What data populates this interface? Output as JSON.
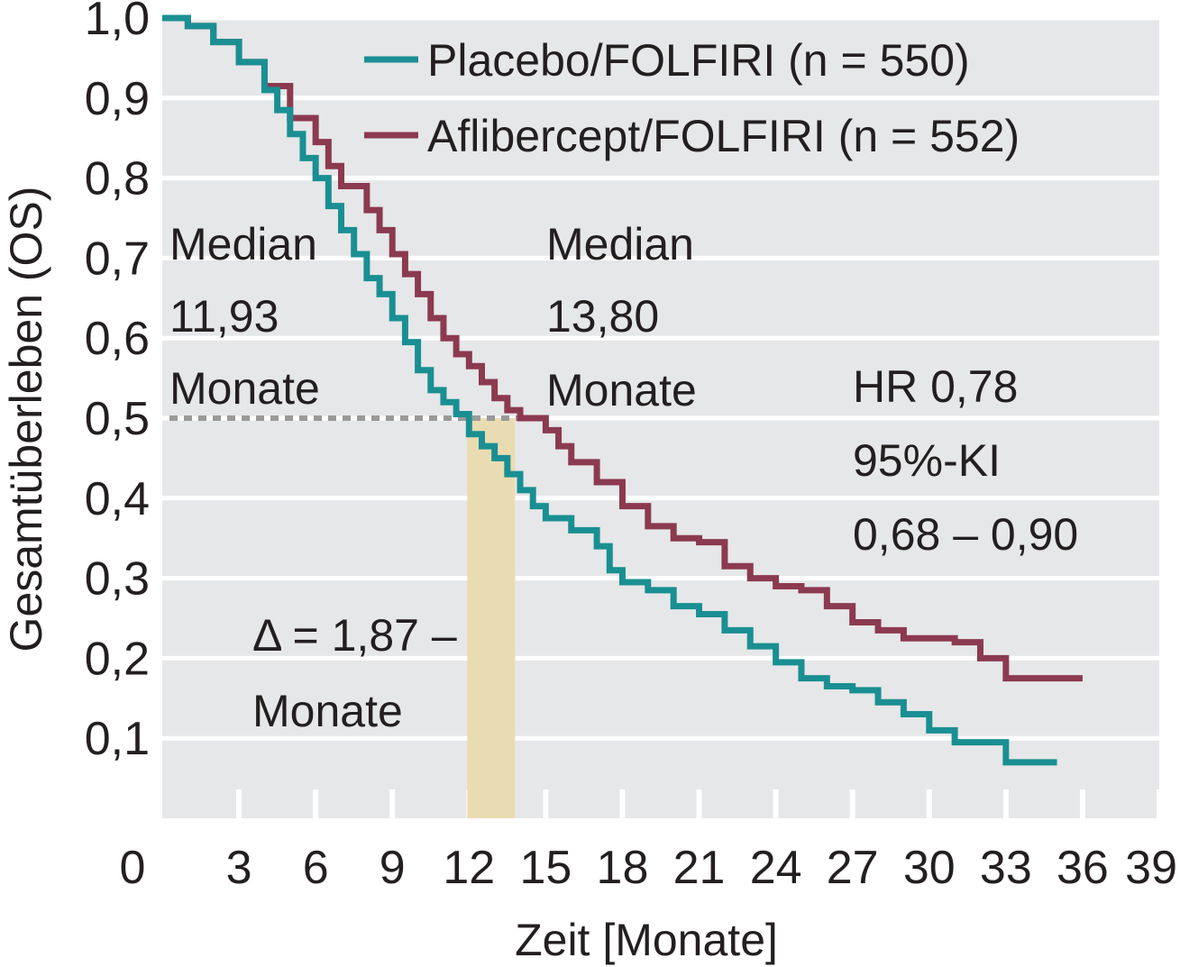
{
  "chart_data": {
    "type": "line",
    "subtype": "kaplan-meier step curve",
    "xlabel": "Zeit [Monate]",
    "ylabel": "Gesamtüberleben (OS)",
    "xlim": [
      0,
      39
    ],
    "ylim": [
      0,
      1.0
    ],
    "x_ticks": [
      "0",
      "3",
      "6",
      "9",
      "12",
      "15",
      "18",
      "21",
      "24",
      "27",
      "30",
      "33",
      "36",
      "39"
    ],
    "y_ticks": [
      "0,1",
      "0,2",
      "0,3",
      "0,4",
      "0,5",
      "0,6",
      "0,7",
      "0,8",
      "0,9",
      "1,0"
    ],
    "grid": "horizontal",
    "background_color": "#e6e7e8",
    "legend_position": "top-right",
    "series": [
      {
        "name": "Placebo/FOLFIRI (n = 550)",
        "color": "#1a8f93",
        "points": [
          [
            0,
            1.0
          ],
          [
            1,
            0.99
          ],
          [
            2,
            0.97
          ],
          [
            3,
            0.945
          ],
          [
            4,
            0.91
          ],
          [
            4.5,
            0.885
          ],
          [
            5,
            0.855
          ],
          [
            5.5,
            0.825
          ],
          [
            6,
            0.8
          ],
          [
            6.5,
            0.765
          ],
          [
            7,
            0.735
          ],
          [
            7.5,
            0.705
          ],
          [
            8,
            0.675
          ],
          [
            8.5,
            0.655
          ],
          [
            9,
            0.625
          ],
          [
            9.5,
            0.595
          ],
          [
            10,
            0.56
          ],
          [
            10.5,
            0.535
          ],
          [
            11,
            0.52
          ],
          [
            11.5,
            0.505
          ],
          [
            12,
            0.48
          ],
          [
            12.5,
            0.465
          ],
          [
            13,
            0.45
          ],
          [
            13.5,
            0.43
          ],
          [
            14,
            0.41
          ],
          [
            14.5,
            0.39
          ],
          [
            15,
            0.375
          ],
          [
            16,
            0.36
          ],
          [
            17,
            0.34
          ],
          [
            17.5,
            0.31
          ],
          [
            18,
            0.295
          ],
          [
            19,
            0.285
          ],
          [
            20,
            0.265
          ],
          [
            21,
            0.255
          ],
          [
            22,
            0.235
          ],
          [
            23,
            0.215
          ],
          [
            24,
            0.195
          ],
          [
            25,
            0.175
          ],
          [
            26,
            0.165
          ],
          [
            27,
            0.16
          ],
          [
            28,
            0.145
          ],
          [
            29,
            0.13
          ],
          [
            30,
            0.11
          ],
          [
            31,
            0.095
          ],
          [
            32,
            0.095
          ],
          [
            33,
            0.07
          ],
          [
            35,
            0.07
          ]
        ]
      },
      {
        "name": "Aflibercept/FOLFIRI (n = 552)",
        "color": "#8b3a4f",
        "points": [
          [
            0,
            1.0
          ],
          [
            1,
            0.99
          ],
          [
            2,
            0.97
          ],
          [
            3,
            0.945
          ],
          [
            4,
            0.915
          ],
          [
            5,
            0.875
          ],
          [
            6,
            0.845
          ],
          [
            6.5,
            0.815
          ],
          [
            7,
            0.79
          ],
          [
            8,
            0.76
          ],
          [
            8.5,
            0.735
          ],
          [
            9,
            0.705
          ],
          [
            9.5,
            0.68
          ],
          [
            10,
            0.655
          ],
          [
            10.5,
            0.625
          ],
          [
            11,
            0.6
          ],
          [
            11.5,
            0.58
          ],
          [
            12,
            0.565
          ],
          [
            12.5,
            0.545
          ],
          [
            13,
            0.525
          ],
          [
            13.5,
            0.51
          ],
          [
            14,
            0.5
          ],
          [
            15,
            0.485
          ],
          [
            15.5,
            0.465
          ],
          [
            16,
            0.445
          ],
          [
            17,
            0.42
          ],
          [
            18,
            0.39
          ],
          [
            19,
            0.365
          ],
          [
            20,
            0.35
          ],
          [
            21,
            0.345
          ],
          [
            22,
            0.315
          ],
          [
            23,
            0.3
          ],
          [
            24,
            0.29
          ],
          [
            25,
            0.285
          ],
          [
            26,
            0.265
          ],
          [
            27,
            0.245
          ],
          [
            28,
            0.235
          ],
          [
            29,
            0.225
          ],
          [
            30,
            0.225
          ],
          [
            31,
            0.22
          ],
          [
            32,
            0.2
          ],
          [
            33,
            0.175
          ],
          [
            35,
            0.175
          ],
          [
            36,
            0.175
          ]
        ]
      }
    ],
    "median_line_y": 0.5,
    "median_line_xmax": 14,
    "median_band": [
      11.93,
      13.8
    ],
    "annotations": {
      "median_placebo": [
        "Median",
        "11,93",
        "Monate"
      ],
      "median_aflibercept": [
        "Median",
        "13,80",
        "Monate"
      ],
      "hazard_ratio": [
        "HR 0,78",
        "95%-KI",
        "0,68 – 0,90"
      ],
      "delta": [
        "Δ = 1,87 –",
        "Monate"
      ]
    },
    "colors": {
      "grid": "#ffffff",
      "median_line": "#9a9a9a",
      "median_band": "#eadcb2",
      "text": "#231f20"
    }
  }
}
